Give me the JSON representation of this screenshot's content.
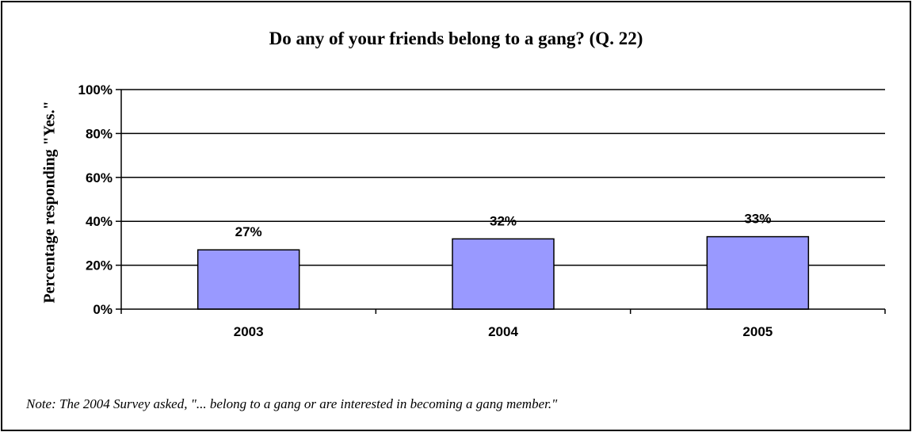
{
  "chart_data": {
    "type": "bar",
    "title": "Do any of your friends belong to a gang?  (Q. 22)",
    "ylabel": "Percentage responding \"Yes.\"",
    "xlabel": "",
    "categories": [
      "2003",
      "2004",
      "2005"
    ],
    "values": [
      27,
      32,
      33
    ],
    "data_labels": [
      "27%",
      "32%",
      "33%"
    ],
    "ylim": [
      0,
      100
    ],
    "yticks": [
      0,
      20,
      40,
      60,
      80,
      100
    ],
    "ytick_labels": [
      "0%",
      "20%",
      "40%",
      "60%",
      "80%",
      "100%"
    ],
    "grid": true,
    "legend": "none",
    "bar_color": "#9999ff",
    "note": "Note:  The 2004 Survey asked, \"... belong to a gang or are interested in becoming a gang member.\""
  }
}
